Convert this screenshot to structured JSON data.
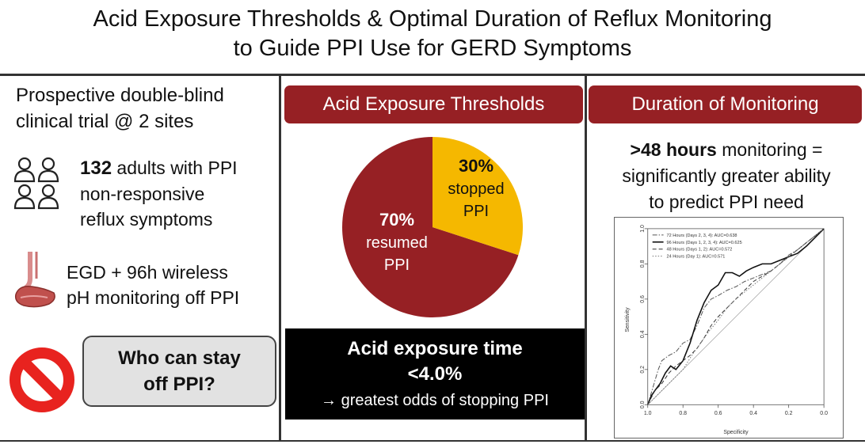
{
  "title": {
    "line1": "Acid Exposure Thresholds & Optimal Duration of Reflux Monitoring",
    "line2": "to Guide PPI Use for GERD Symptoms"
  },
  "left": {
    "heading1": "Prospective double-blind",
    "heading2": "clinical trial @ 2 sites",
    "adults_count": "132",
    "adults_line1": " adults with PPI",
    "adults_line2": "non-responsive",
    "adults_line3": "reflux symptoms",
    "egd_line1": "EGD + 96h wireless",
    "egd_line2": "pH monitoring off PPI",
    "question_line1": "Who can stay",
    "question_line2": "off PPI?",
    "icons": [
      "people-icon",
      "stomach-icon",
      "prohibited-icon"
    ]
  },
  "middle": {
    "banner": "Acid Exposure Thresholds",
    "pie": {
      "slices": [
        {
          "percent": "70%",
          "value": 70,
          "label1": "resumed",
          "label2": "PPI",
          "color": "#962024"
        },
        {
          "percent": "30%",
          "value": 30,
          "label1": "stopped",
          "label2": "PPI",
          "color": "#f5b800"
        }
      ]
    },
    "box_line1": "Acid exposure time",
    "box_line2": "<4.0%",
    "box_line3": "→ greatest odds of stopping PPI"
  },
  "right": {
    "banner": "Duration of Monitoring",
    "bold": ">48 hours",
    "line1_rest": " monitoring =",
    "line2": "significantly greater ability",
    "line3": "to predict PPI need"
  },
  "chart_data": {
    "type": "line",
    "xlabel": "Specificity",
    "ylabel": "Sensitivity",
    "xlim": [
      1.0,
      0.0
    ],
    "ylim": [
      0.0,
      1.0
    ],
    "x_ticks": [
      "1.0",
      "0.8",
      "0.6",
      "0.4",
      "0.2",
      "0.0"
    ],
    "y_ticks": [
      "0.0",
      "0.2",
      "0.4",
      "0.6",
      "0.8",
      "1.0"
    ],
    "legend": [
      "72 Hours (Days 2, 3, 4): AUC=0.638",
      "96 Hours (Days 1, 2, 3, 4): AUC=0.625",
      "48 Hours (Days 1, 2): AUC=0.572",
      "24 Hours (Day 1): AUC=0.571"
    ],
    "series": [
      {
        "name": "72 Hours (Days 2, 3, 4): AUC=0.638",
        "style": "dashdot",
        "x": [
          1.0,
          0.97,
          0.94,
          0.92,
          0.88,
          0.84,
          0.8,
          0.76,
          0.72,
          0.68,
          0.64,
          0.6,
          0.55,
          0.5,
          0.45,
          0.4,
          0.35,
          0.3,
          0.25,
          0.2,
          0.15,
          0.1,
          0.05,
          0.0
        ],
        "y": [
          0.0,
          0.1,
          0.2,
          0.25,
          0.28,
          0.3,
          0.35,
          0.37,
          0.45,
          0.55,
          0.6,
          0.62,
          0.65,
          0.67,
          0.7,
          0.72,
          0.74,
          0.76,
          0.8,
          0.85,
          0.88,
          0.92,
          0.96,
          1.0
        ]
      },
      {
        "name": "96 Hours (Days 1, 2, 3, 4): AUC=0.625",
        "style": "solid",
        "x": [
          1.0,
          0.98,
          0.96,
          0.93,
          0.9,
          0.87,
          0.84,
          0.8,
          0.76,
          0.72,
          0.68,
          0.64,
          0.6,
          0.56,
          0.52,
          0.48,
          0.44,
          0.4,
          0.35,
          0.3,
          0.25,
          0.2,
          0.15,
          0.1,
          0.05,
          0.0
        ],
        "y": [
          0.0,
          0.05,
          0.08,
          0.12,
          0.18,
          0.22,
          0.2,
          0.25,
          0.35,
          0.48,
          0.58,
          0.65,
          0.68,
          0.75,
          0.75,
          0.73,
          0.76,
          0.78,
          0.8,
          0.8,
          0.82,
          0.84,
          0.86,
          0.9,
          0.95,
          1.0
        ]
      },
      {
        "name": "48 Hours (Days 1, 2): AUC=0.572",
        "style": "dashed",
        "x": [
          1.0,
          0.96,
          0.92,
          0.88,
          0.84,
          0.8,
          0.76,
          0.72,
          0.68,
          0.64,
          0.6,
          0.55,
          0.5,
          0.45,
          0.4,
          0.35,
          0.3,
          0.25,
          0.2,
          0.15,
          0.1,
          0.05,
          0.0
        ],
        "y": [
          0.0,
          0.08,
          0.12,
          0.18,
          0.22,
          0.25,
          0.28,
          0.32,
          0.38,
          0.45,
          0.5,
          0.55,
          0.6,
          0.65,
          0.7,
          0.73,
          0.76,
          0.8,
          0.84,
          0.88,
          0.92,
          0.96,
          1.0
        ]
      },
      {
        "name": "24 Hours (Day 1): AUC=0.571",
        "style": "dotted",
        "x": [
          1.0,
          0.95,
          0.9,
          0.85,
          0.8,
          0.75,
          0.7,
          0.65,
          0.6,
          0.55,
          0.5,
          0.45,
          0.4,
          0.35,
          0.3,
          0.25,
          0.2,
          0.15,
          0.1,
          0.05,
          0.0
        ],
        "y": [
          0.0,
          0.05,
          0.1,
          0.15,
          0.2,
          0.28,
          0.35,
          0.42,
          0.48,
          0.55,
          0.6,
          0.64,
          0.68,
          0.72,
          0.76,
          0.8,
          0.84,
          0.88,
          0.92,
          0.96,
          1.0
        ]
      }
    ]
  }
}
